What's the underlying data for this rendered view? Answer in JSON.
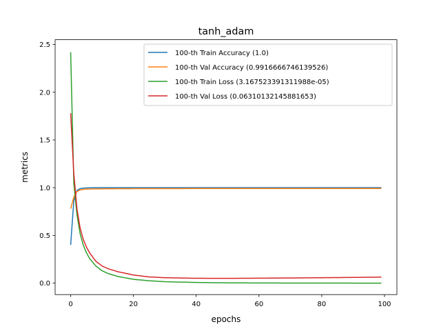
{
  "chart_data": {
    "type": "line",
    "title": "tanh_adam",
    "xlabel": "epochs",
    "ylabel": "metrics",
    "xlim": [
      -4.95,
      103.95
    ],
    "ylim": [
      -0.12,
      2.55
    ],
    "xticks": [
      0,
      20,
      40,
      60,
      80,
      100
    ],
    "yticks": [
      0.0,
      0.5,
      1.0,
      1.5,
      2.0,
      2.5
    ],
    "xtick_labels": [
      "0",
      "20",
      "40",
      "60",
      "80",
      "100"
    ],
    "ytick_labels": [
      "0.0",
      "0.5",
      "1.0",
      "1.5",
      "2.0",
      "2.5"
    ],
    "grid": false,
    "legend_position": "upper right",
    "epochs": 100,
    "series": [
      {
        "name": "100-th Train Accuracy (1.0)",
        "color": "#1f77b4",
        "points": [
          [
            0,
            0.4
          ],
          [
            1,
            0.86
          ],
          [
            2,
            0.97
          ],
          [
            3,
            0.99
          ],
          [
            4,
            0.995
          ],
          [
            5,
            0.998
          ],
          [
            7,
            0.999
          ],
          [
            10,
            1.0
          ],
          [
            20,
            1.0
          ],
          [
            40,
            1.0
          ],
          [
            60,
            1.0
          ],
          [
            80,
            1.0
          ],
          [
            99,
            1.0
          ]
        ]
      },
      {
        "name": "100-th Val Accuracy (0.9916666746139526)",
        "color": "#ff7f0e",
        "points": [
          [
            0,
            0.78
          ],
          [
            1,
            0.9
          ],
          [
            2,
            0.96
          ],
          [
            3,
            0.975
          ],
          [
            4,
            0.982
          ],
          [
            5,
            0.985
          ],
          [
            7,
            0.987
          ],
          [
            10,
            0.988
          ],
          [
            20,
            0.99
          ],
          [
            40,
            0.991
          ],
          [
            60,
            0.991
          ],
          [
            80,
            0.991
          ],
          [
            99,
            0.9917
          ]
        ]
      },
      {
        "name": "100-th Train Loss (3.167523391311988e-05)",
        "color": "#2ca02c",
        "points": [
          [
            0,
            2.42
          ],
          [
            1,
            1.05
          ],
          [
            2,
            0.72
          ],
          [
            3,
            0.52
          ],
          [
            4,
            0.4
          ],
          [
            5,
            0.32
          ],
          [
            6,
            0.26
          ],
          [
            8,
            0.18
          ],
          [
            10,
            0.13
          ],
          [
            12,
            0.1
          ],
          [
            15,
            0.07
          ],
          [
            20,
            0.04
          ],
          [
            25,
            0.025
          ],
          [
            30,
            0.015
          ],
          [
            40,
            0.007
          ],
          [
            50,
            0.003
          ],
          [
            60,
            0.0015
          ],
          [
            80,
            0.0003
          ],
          [
            99,
            3e-05
          ]
        ]
      },
      {
        "name": "100-th Val Loss (0.06310132145881653)",
        "color": "#d62728",
        "points": [
          [
            0,
            1.78
          ],
          [
            1,
            1.15
          ],
          [
            2,
            0.78
          ],
          [
            3,
            0.58
          ],
          [
            4,
            0.46
          ],
          [
            5,
            0.38
          ],
          [
            6,
            0.32
          ],
          [
            8,
            0.23
          ],
          [
            10,
            0.18
          ],
          [
            12,
            0.15
          ],
          [
            15,
            0.12
          ],
          [
            20,
            0.085
          ],
          [
            25,
            0.065
          ],
          [
            30,
            0.057
          ],
          [
            40,
            0.051
          ],
          [
            50,
            0.05
          ],
          [
            60,
            0.052
          ],
          [
            70,
            0.054
          ],
          [
            80,
            0.057
          ],
          [
            90,
            0.06
          ],
          [
            99,
            0.063
          ]
        ]
      }
    ]
  }
}
